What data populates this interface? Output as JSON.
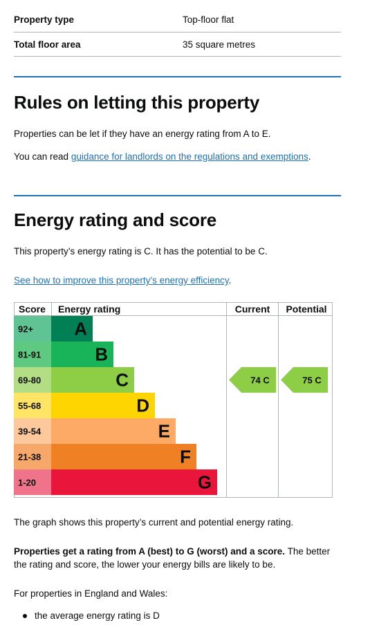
{
  "summary": {
    "rows": [
      {
        "label": "Property type",
        "value": "Top-floor flat"
      },
      {
        "label": "Total floor area",
        "value": "35 square metres"
      }
    ]
  },
  "letting": {
    "heading": "Rules on letting this property",
    "text1": "Properties can be let if they have an energy rating from A to E.",
    "text2_before": "You can read ",
    "text2_link": "guidance for landlords on the regulations and exemptions",
    "text2_after": "."
  },
  "rating": {
    "heading": "Energy rating and score",
    "text1": "This property’s energy rating is C. It has the potential to be C.",
    "link": "See how to improve this property’s energy efficiency",
    "link_after": "."
  },
  "chart_data": {
    "type": "table",
    "headers": {
      "score": "Score",
      "rating": "Energy rating",
      "current": "Current",
      "potential": "Potential"
    },
    "bands": [
      {
        "letter": "A",
        "range": "92+",
        "color": "#008054",
        "score_color": "#5fc394"
      },
      {
        "letter": "B",
        "range": "81-91",
        "color": "#19b459",
        "score_color": "#5ec981"
      },
      {
        "letter": "C",
        "range": "69-80",
        "color": "#8dce46",
        "score_color": "#b3dd85"
      },
      {
        "letter": "D",
        "range": "55-68",
        "color": "#ffd500",
        "score_color": "#ffe466"
      },
      {
        "letter": "E",
        "range": "39-54",
        "color": "#fcaa65",
        "score_color": "#fdc89b"
      },
      {
        "letter": "F",
        "range": "21-38",
        "color": "#ef8023",
        "score_color": "#f5a86a"
      },
      {
        "letter": "G",
        "range": "1-20",
        "color": "#e9153b",
        "score_color": "#f07489"
      }
    ],
    "current": {
      "score": 74,
      "letter": "C",
      "label": "74  C"
    },
    "potential": {
      "score": 75,
      "letter": "C",
      "label": "75  C"
    }
  },
  "footer": {
    "graph_text": "The graph shows this property’s current and potential energy rating.",
    "bold_text": "Properties get a rating from A (best) to G (worst) and a score.",
    "rest_text": " The better the rating and score, the lower your energy bills are likely to be.",
    "region_text": "For properties in England and Wales:",
    "bullet": "the average energy rating is D"
  }
}
